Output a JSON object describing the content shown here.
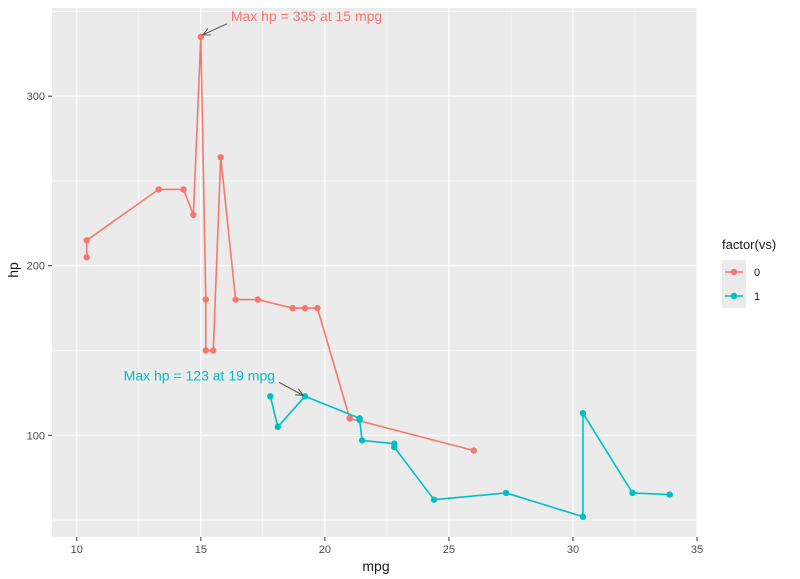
{
  "chart_data": {
    "type": "line",
    "xlabel": "mpg",
    "ylabel": "hp",
    "xlim": [
      9.0,
      35.0
    ],
    "ylim": [
      40,
      352
    ],
    "x_ticks": [
      10,
      15,
      20,
      25,
      30,
      35
    ],
    "y_ticks": [
      100,
      200,
      300
    ],
    "grid": true,
    "legend": {
      "title": "factor(vs)",
      "placement": "right",
      "items": [
        "0",
        "1"
      ]
    },
    "series": [
      {
        "name": "0",
        "color": "#F8766D",
        "points": [
          [
            10.4,
            205
          ],
          [
            10.4,
            215
          ],
          [
            13.3,
            245
          ],
          [
            14.3,
            245
          ],
          [
            14.7,
            230
          ],
          [
            15.0,
            335
          ],
          [
            15.2,
            180
          ],
          [
            15.2,
            150
          ],
          [
            15.5,
            150
          ],
          [
            15.8,
            264
          ],
          [
            16.4,
            180
          ],
          [
            17.3,
            180
          ],
          [
            18.7,
            175
          ],
          [
            19.2,
            175
          ],
          [
            19.7,
            175
          ],
          [
            21.0,
            110
          ],
          [
            21.0,
            110
          ],
          [
            26.0,
            91
          ]
        ]
      },
      {
        "name": "1",
        "color": "#00BFC4",
        "points": [
          [
            17.8,
            123
          ],
          [
            18.1,
            105
          ],
          [
            19.2,
            123
          ],
          [
            21.4,
            110
          ],
          [
            21.4,
            109
          ],
          [
            21.5,
            97
          ],
          [
            22.8,
            95
          ],
          [
            22.8,
            93
          ],
          [
            24.4,
            62
          ],
          [
            27.3,
            66
          ],
          [
            30.4,
            52
          ],
          [
            30.4,
            113
          ],
          [
            32.4,
            66
          ],
          [
            33.9,
            65
          ]
        ]
      }
    ],
    "annotations": [
      {
        "text": "Max hp = 335 at 15 mpg",
        "color": "#F8766D",
        "point": [
          15.0,
          335
        ]
      },
      {
        "text": "Max hp = 123 at 19 mpg",
        "color": "#00BFC4",
        "point": [
          19.2,
          123
        ]
      }
    ]
  }
}
